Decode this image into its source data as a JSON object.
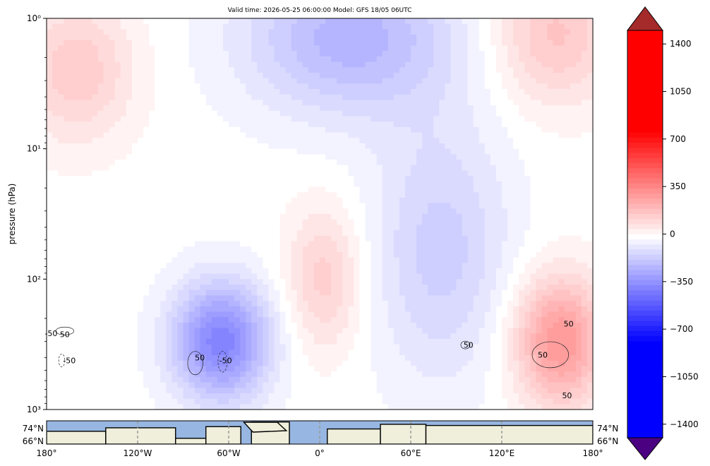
{
  "title": "Valid time: 2026-05-25 06:00:00 Model: GFS 18/05 06UTC",
  "chart_data": [
    {
      "type": "heatmap",
      "title": "Valid time: 2026-05-25 06:00:00 Model: GFS 18/05 06UTC",
      "xlabel": "",
      "ylabel": "pressure (hPa)",
      "y_scale": "log",
      "y_inverted": true,
      "ylim": [
        1000,
        1
      ],
      "y_ticks": [
        {
          "value": 1,
          "label": "10⁰"
        },
        {
          "value": 10,
          "label": "10¹"
        },
        {
          "value": 100,
          "label": "10²"
        },
        {
          "value": 1000,
          "label": "10³"
        }
      ],
      "xlim": [
        -180,
        180
      ],
      "grid": false,
      "colormap": "seismic-like (blue-white-red)",
      "contour_labels": [
        {
          "label": "-50",
          "lon": -177,
          "p": 260
        },
        {
          "label": "50",
          "lon": -168,
          "p": 265
        },
        {
          "label": "-50",
          "lon": -165,
          "p": 420
        },
        {
          "label": "50",
          "lon": -79,
          "p": 400
        },
        {
          "label": "-50",
          "lon": -62,
          "p": 420
        },
        {
          "label": "50",
          "lon": 98,
          "p": 320
        },
        {
          "label": "50",
          "lon": 147,
          "p": 380
        },
        {
          "label": "50",
          "lon": 164,
          "p": 220
        },
        {
          "label": "50",
          "lon": 163,
          "p": 780
        }
      ],
      "field_blobs": [
        {
          "sign": "neg",
          "lon": -65,
          "p": 300,
          "amp": -380,
          "lon_width": 32,
          "logp_width": 0.45
        },
        {
          "sign": "neg",
          "lon": 20,
          "p": 1.4,
          "amp": -230,
          "lon_width": 70,
          "logp_width": 0.6
        },
        {
          "sign": "pos",
          "lon": 3,
          "p": 100,
          "amp": 150,
          "lon_width": 25,
          "logp_width": 0.55
        },
        {
          "sign": "pos",
          "lon": -160,
          "p": 2.5,
          "amp": 160,
          "lon_width": 38,
          "logp_width": 0.55
        },
        {
          "sign": "pos",
          "lon": 155,
          "p": 1.3,
          "amp": 180,
          "lon_width": 40,
          "logp_width": 0.55
        },
        {
          "sign": "pos",
          "lon": 158,
          "p": 300,
          "amp": 320,
          "lon_width": 30,
          "logp_width": 0.5
        },
        {
          "sign": "neg",
          "lon": 80,
          "p": 60,
          "amp": -150,
          "lon_width": 45,
          "logp_width": 1.0
        }
      ]
    },
    {
      "type": "colorbar",
      "ticks": [
        1400,
        1050,
        700,
        350,
        0,
        -350,
        -700,
        -1050,
        -1400
      ],
      "tick_labels": [
        "1400",
        "1050",
        "700",
        "350",
        "0",
        "−350",
        "−700",
        "−1050",
        "−1400"
      ],
      "range": [
        -1500,
        1500
      ],
      "extend": "both",
      "colors": {
        "max": "#a52a2a",
        "high": "#ff0000",
        "mid": "#ffffff",
        "low": "#0000ff",
        "min": "#4b0082"
      }
    },
    {
      "type": "map",
      "xlim": [
        -180,
        180
      ],
      "x_ticks": [
        {
          "value": -180,
          "label": "180°"
        },
        {
          "value": -120,
          "label": "120°W"
        },
        {
          "value": -60,
          "label": "60°W"
        },
        {
          "value": 0,
          "label": "0°"
        },
        {
          "value": 60,
          "label": "60°E"
        },
        {
          "value": 120,
          "label": "120°E"
        },
        {
          "value": 180,
          "label": "180°"
        }
      ],
      "y_tick_labels": [
        "74°N",
        "66°N"
      ],
      "colors": {
        "ocean": "#97b6e1",
        "land": "#efefdb",
        "coast": "#000000"
      }
    }
  ]
}
